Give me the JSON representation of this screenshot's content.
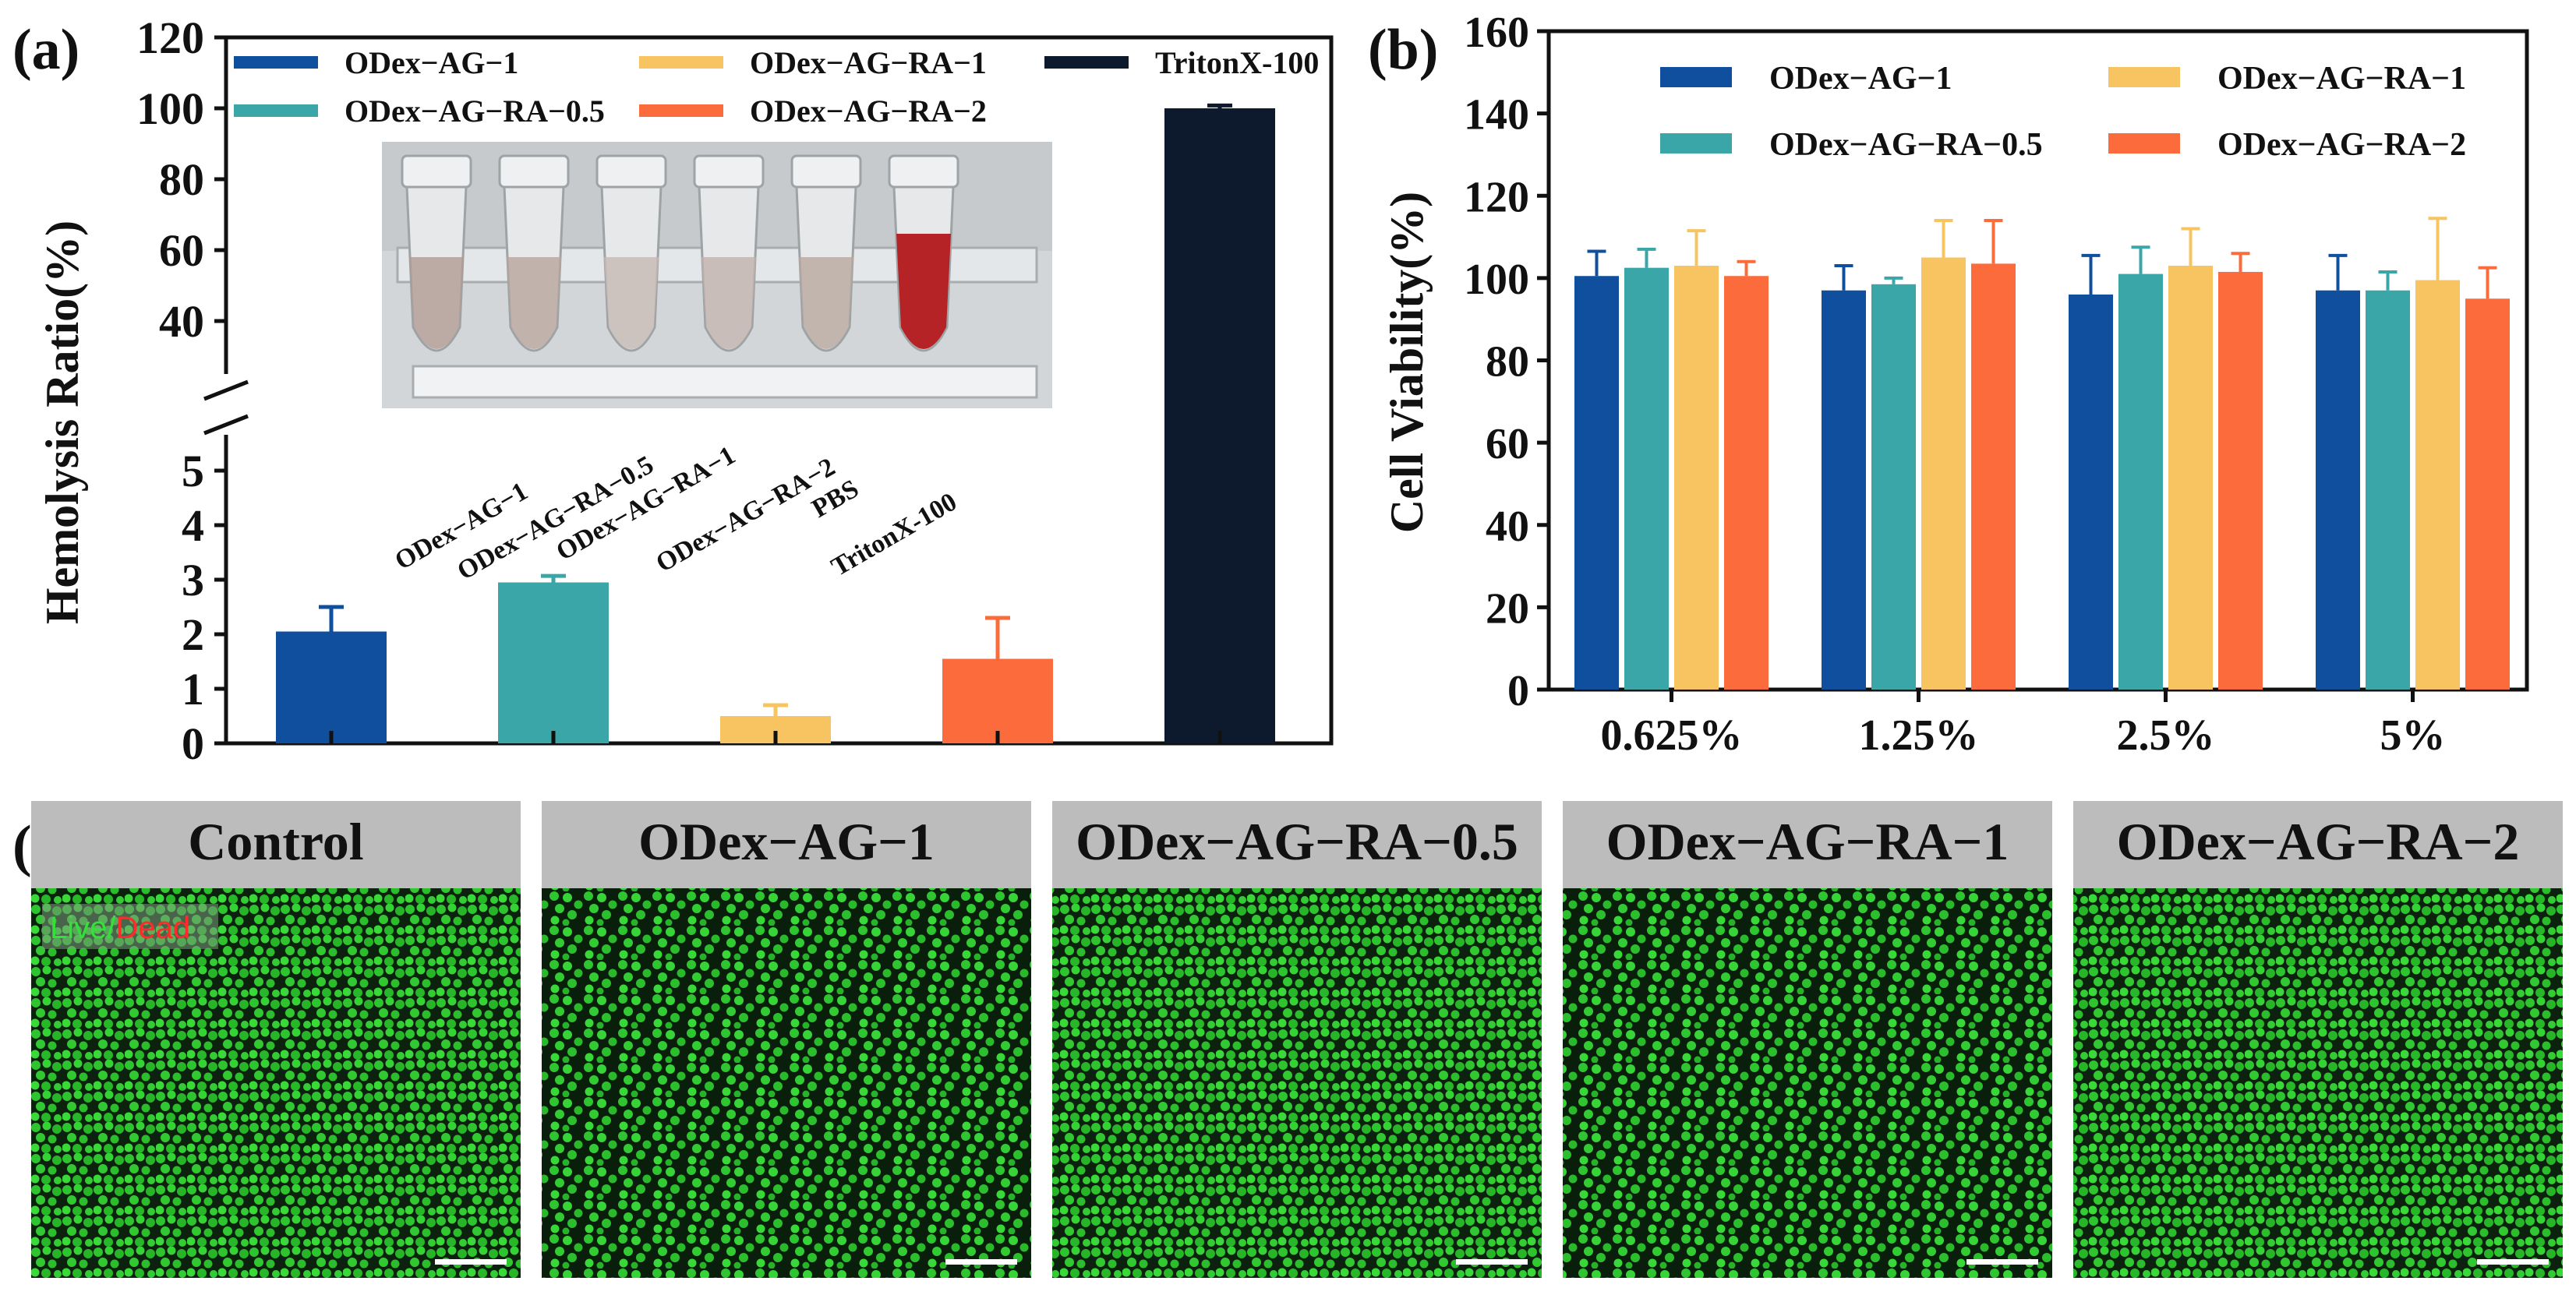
{
  "colors": {
    "odex_ag_1": "#0f4f9d",
    "odex_ag_ra_05": "#3aa6a8",
    "odex_ag_ra_1": "#f7c461",
    "odex_ag_ra_2": "#fb6b3c",
    "triton": "#0d1a2d",
    "micro_bg": "#0c220e",
    "micro_cell": "#2ec42f",
    "header_gray": "#bcbcbc"
  },
  "panel_a": {
    "label": "(a)",
    "chart_data": {
      "type": "bar",
      "ylabel": "Hemolysis Ratio(%)",
      "ylim_lower": [
        0,
        5
      ],
      "ylim_upper": [
        30,
        120
      ],
      "lower_ticks": [
        "0",
        "1",
        "2",
        "3",
        "4",
        "5"
      ],
      "upper_ticks": [
        "40",
        "60",
        "80",
        "100",
        "120"
      ],
      "categories": [
        "ODex−AG−1",
        "ODex−AG−RA−0.5",
        "ODex−AG−RA−1",
        "ODex−AG−RA−2",
        "TritonX-100"
      ],
      "values": [
        2.05,
        2.95,
        0.5,
        1.55,
        100
      ],
      "errors": [
        0.45,
        0.12,
        0.2,
        0.75,
        0.8
      ],
      "legend": [
        "ODex−AG−1",
        "ODex−AG−RA−0.5",
        "ODex−AG−RA−1",
        "ODex−AG−RA−2",
        "TritonX-100"
      ]
    },
    "inset": {
      "tube_labels": [
        "ODex−AG−1",
        "ODex−AG−RA−0.5",
        "ODex−AG−RA−1",
        "ODex−AG−RA−2",
        "PBS",
        "TritonX-100"
      ]
    }
  },
  "panel_b": {
    "label": "(b)",
    "chart_data": {
      "type": "bar",
      "ylabel": "Cell Viability(%)",
      "ylim": [
        0,
        160
      ],
      "ticks": [
        "0",
        "20",
        "40",
        "60",
        "80",
        "100",
        "120",
        "140",
        "160"
      ],
      "categories": [
        "0.625%",
        "1.25%",
        "2.5%",
        "5%"
      ],
      "series": [
        {
          "name": "ODex−AG−1",
          "values": [
            100.5,
            97,
            96,
            97
          ],
          "errors": [
            6,
            6,
            9.5,
            8.5
          ]
        },
        {
          "name": "ODex−AG−RA−0.5",
          "values": [
            102.5,
            98.5,
            101,
            97
          ],
          "errors": [
            4.5,
            1.5,
            6.5,
            4.5
          ]
        },
        {
          "name": "ODex−AG−RA−1",
          "values": [
            103,
            105,
            103,
            99.5
          ],
          "errors": [
            8.5,
            9,
            9,
            15
          ]
        },
        {
          "name": "ODex−AG−RA−2",
          "values": [
            100.5,
            103.5,
            101.5,
            95
          ],
          "errors": [
            3.5,
            10.5,
            4.5,
            7.5
          ]
        }
      ]
    }
  },
  "panel_c": {
    "label": "(c)",
    "titles": [
      "Control",
      "ODex−AG−1",
      "ODex−AG−RA−0.5",
      "ODex−AG−RA−1",
      "ODex−AG−RA−2"
    ],
    "stain_live": "Live",
    "stain_sep": "/",
    "stain_dead": "Dead"
  }
}
